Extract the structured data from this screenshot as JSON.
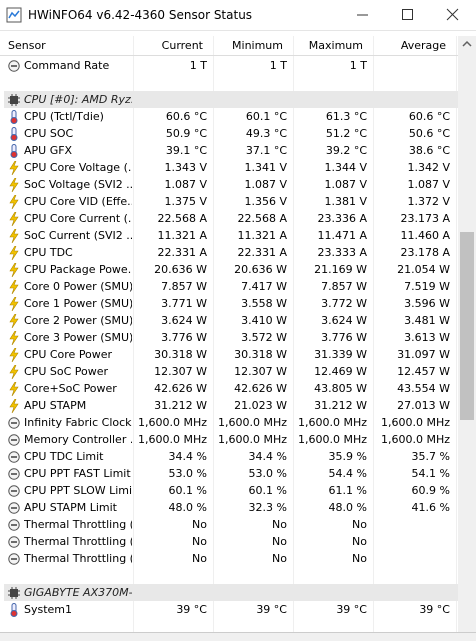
{
  "window": {
    "title": "HWiNFO64 v6.42-4360 Sensor Status"
  },
  "table": {
    "columns": [
      "Sensor",
      "Current",
      "Minimum",
      "Maximum",
      "Average"
    ],
    "rows": [
      {
        "icon": "gauge",
        "cells": [
          "Command Rate",
          "1 T",
          "1 T",
          "1 T"
        ]
      },
      {
        "group": "CPU [#0]: AMD Ryz..."
      },
      {
        "icon": "thermometer",
        "cells": [
          "CPU (Tctl/Tdie)",
          "60.6 °C",
          "60.1 °C",
          "61.3 °C",
          "60.6 °C"
        ]
      },
      {
        "icon": "thermometer",
        "cells": [
          "CPU SOC",
          "50.9 °C",
          "49.3 °C",
          "51.2 °C",
          "50.6 °C"
        ]
      },
      {
        "icon": "thermometer",
        "cells": [
          "APU GFX",
          "39.1 °C",
          "37.1 °C",
          "39.2 °C",
          "38.6 °C"
        ]
      },
      {
        "icon": "bolt",
        "cells": [
          "CPU Core Voltage (...",
          "1.343 V",
          "1.341 V",
          "1.344 V",
          "1.342 V"
        ]
      },
      {
        "icon": "bolt",
        "cells": [
          "SoC Voltage (SVI2 ...",
          "1.087 V",
          "1.087 V",
          "1.087 V",
          "1.087 V"
        ]
      },
      {
        "icon": "bolt",
        "cells": [
          "CPU Core VID (Effe...",
          "1.375 V",
          "1.356 V",
          "1.381 V",
          "1.372 V"
        ]
      },
      {
        "icon": "bolt",
        "cells": [
          "CPU Core Current (...",
          "22.568 A",
          "22.568 A",
          "23.336 A",
          "23.173 A"
        ]
      },
      {
        "icon": "bolt",
        "cells": [
          "SoC Current (SVI2 ...",
          "11.321 A",
          "11.321 A",
          "11.471 A",
          "11.460 A"
        ]
      },
      {
        "icon": "bolt",
        "cells": [
          "CPU TDC",
          "22.331 A",
          "22.331 A",
          "23.333 A",
          "23.178 A"
        ]
      },
      {
        "icon": "bolt",
        "cells": [
          "CPU Package Powe...",
          "20.636 W",
          "20.636 W",
          "21.169 W",
          "21.054 W"
        ]
      },
      {
        "icon": "bolt",
        "cells": [
          "Core 0 Power (SMU)",
          "7.857 W",
          "7.417 W",
          "7.857 W",
          "7.519 W"
        ]
      },
      {
        "icon": "bolt",
        "cells": [
          "Core 1 Power (SMU)",
          "3.771 W",
          "3.558 W",
          "3.772 W",
          "3.596 W"
        ]
      },
      {
        "icon": "bolt",
        "cells": [
          "Core 2 Power (SMU)",
          "3.624 W",
          "3.410 W",
          "3.624 W",
          "3.481 W"
        ]
      },
      {
        "icon": "bolt",
        "cells": [
          "Core 3 Power (SMU)",
          "3.776 W",
          "3.572 W",
          "3.776 W",
          "3.613 W"
        ]
      },
      {
        "icon": "bolt",
        "cells": [
          "CPU Core Power",
          "30.318 W",
          "30.318 W",
          "31.339 W",
          "31.097 W"
        ]
      },
      {
        "icon": "bolt",
        "cells": [
          "CPU SoC Power",
          "12.307 W",
          "12.307 W",
          "12.469 W",
          "12.457 W"
        ]
      },
      {
        "icon": "bolt",
        "cells": [
          "Core+SoC Power",
          "42.626 W",
          "42.626 W",
          "43.805 W",
          "43.554 W"
        ]
      },
      {
        "icon": "bolt",
        "cells": [
          "APU STAPM",
          "31.212 W",
          "21.023 W",
          "31.212 W",
          "27.013 W"
        ]
      },
      {
        "icon": "gauge",
        "cells": [
          "Infinity Fabric Clock...",
          "1,600.0 MHz",
          "1,600.0 MHz",
          "1,600.0 MHz",
          "1,600.0 MHz"
        ]
      },
      {
        "icon": "gauge",
        "cells": [
          "Memory Controller ...",
          "1,600.0 MHz",
          "1,600.0 MHz",
          "1,600.0 MHz",
          "1,600.0 MHz"
        ]
      },
      {
        "icon": "gauge",
        "cells": [
          "CPU TDC Limit",
          "34.4 %",
          "34.4 %",
          "35.9 %",
          "35.7 %"
        ]
      },
      {
        "icon": "gauge",
        "cells": [
          "CPU PPT FAST Limit",
          "53.0 %",
          "53.0 %",
          "54.4 %",
          "54.1 %"
        ]
      },
      {
        "icon": "gauge",
        "cells": [
          "CPU PPT SLOW Limit",
          "60.1 %",
          "60.1 %",
          "61.1 %",
          "60.9 %"
        ]
      },
      {
        "icon": "gauge",
        "cells": [
          "APU STAPM Limit",
          "48.0 %",
          "32.3 %",
          "48.0 %",
          "41.6 %"
        ]
      },
      {
        "icon": "gauge",
        "cells": [
          "Thermal Throttling (...",
          "No",
          "No",
          "No"
        ]
      },
      {
        "icon": "gauge",
        "cells": [
          "Thermal Throttling (...",
          "No",
          "No",
          "No"
        ]
      },
      {
        "icon": "gauge",
        "cells": [
          "Thermal Throttling (...",
          "No",
          "No",
          "No"
        ]
      },
      {
        "group": "GIGABYTE AX370M-..."
      },
      {
        "icon": "thermometer",
        "cells": [
          "System1",
          "39 °C",
          "39 °C",
          "39 °C",
          "39 °C"
        ]
      }
    ]
  }
}
